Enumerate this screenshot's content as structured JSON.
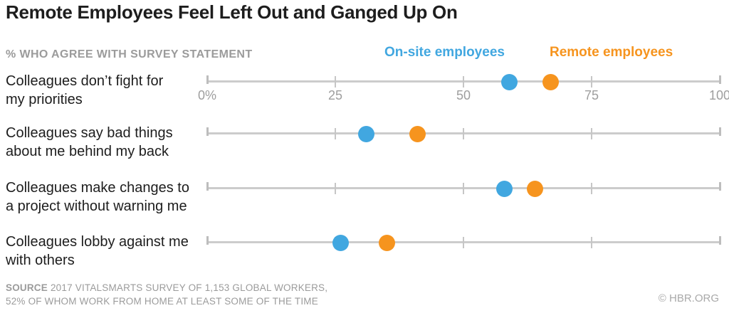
{
  "title": "Remote Employees Feel Left Out and Ganged Up On",
  "subtitle": "% WHO AGREE WITH SURVEY STATEMENT",
  "legend": [
    {
      "label": "On-site employees",
      "color": "#41a7e0"
    },
    {
      "label": "Remote employees",
      "color": "#f6941e"
    }
  ],
  "chart_data": {
    "type": "scatter",
    "variant": "dot-plot",
    "title": "Remote Employees Feel Left Out and Ganged Up On",
    "xlabel": "% who agree with survey statement",
    "categories": [
      "Colleagues don’t fight for my priorities",
      "Colleagues say bad things about me behind my back",
      "Colleagues make changes to a project without warning me",
      "Colleagues lobby against me with others"
    ],
    "categories_lines": [
      [
        "Colleagues don’t fight for",
        "my priorities"
      ],
      [
        "Colleagues say bad things",
        "about me behind my back"
      ],
      [
        "Colleagues make changes to",
        "a project without warning me"
      ],
      [
        "Colleagues lobby against me",
        "with others"
      ]
    ],
    "series": [
      {
        "name": "On-site employees",
        "color": "#41a7e0",
        "values": [
          59,
          31,
          58,
          26
        ]
      },
      {
        "name": "Remote employees",
        "color": "#f6941e",
        "values": [
          67,
          41,
          64,
          35
        ]
      }
    ],
    "xlim": [
      0,
      100
    ],
    "xticks": [
      0,
      25,
      50,
      75,
      100
    ],
    "xtick_labels": [
      "0%",
      "25",
      "50",
      "75",
      "100"
    ],
    "grid": false,
    "legend_position": "top-right"
  },
  "source": {
    "label": "SOURCE",
    "line1": "2017 VITALSMARTS SURVEY OF 1,153 GLOBAL WORKERS,",
    "line2": "52% OF WHOM WORK FROM HOME AT LEAST SOME OF THE TIME"
  },
  "credit": "© HBR.ORG",
  "colors": {
    "onsite": "#41a7e0",
    "remote": "#f6941e",
    "axis": "#cccccc",
    "tick": "#c6c6c6",
    "muted_text": "#9b9b9b",
    "title_text": "#1d1d1d"
  }
}
